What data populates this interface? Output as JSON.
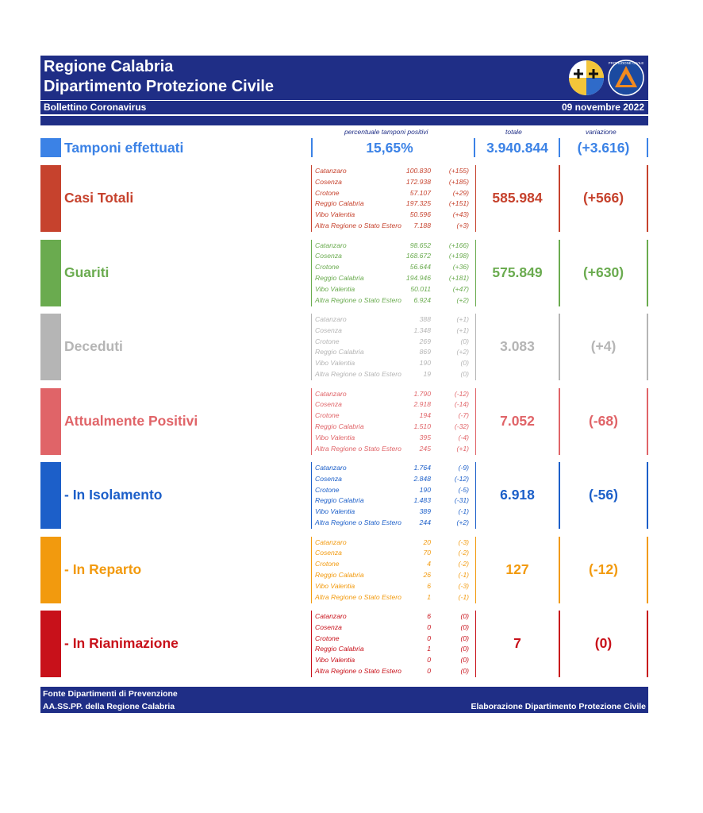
{
  "header": {
    "title_line1": "Regione Calabria",
    "title_line2": "Dipartimento Protezione Civile",
    "bulletin": "Bollettino Coronavirus",
    "date": "09 novembre 2022",
    "logo_text": "PROTEZIONE CIVILE"
  },
  "captions": {
    "positive_pct": "percentuale tamponi positivi",
    "total": "totale",
    "variation": "variazione"
  },
  "tamponi": {
    "label": "Tamponi effettuati",
    "pct": "15,65%",
    "total": "3.940.844",
    "variation": "(+3.616)",
    "color": "#3b82e6"
  },
  "provinces": [
    "Catanzaro",
    "Cosenza",
    "Crotone",
    "Reggio Calabria",
    "Vibo Valentia",
    "Altra Regione o Stato Estero"
  ],
  "rows": [
    {
      "label": "Casi Totali",
      "color": "#c6422d",
      "total": "585.984",
      "variation": "(+566)",
      "values": [
        "100.830",
        "172.938",
        "57.107",
        "197.325",
        "50.596",
        "7.188"
      ],
      "deltas": [
        "(+155)",
        "(+185)",
        "(+29)",
        "(+151)",
        "(+43)",
        "(+3)"
      ]
    },
    {
      "label": "Guariti",
      "color": "#6aab4f",
      "total": "575.849",
      "variation": "(+630)",
      "values": [
        "98.652",
        "168.672",
        "56.644",
        "194.946",
        "50.011",
        "6.924"
      ],
      "deltas": [
        "(+166)",
        "(+198)",
        "(+36)",
        "(+181)",
        "(+47)",
        "(+2)"
      ]
    },
    {
      "label": "Deceduti",
      "color": "#b5b5b5",
      "total": "3.083",
      "variation": "(+4)",
      "values": [
        "388",
        "1.348",
        "269",
        "869",
        "190",
        "19"
      ],
      "deltas": [
        "(+1)",
        "(+1)",
        "(0)",
        "(+2)",
        "(0)",
        "(0)"
      ]
    },
    {
      "label": "Attualmente Positivi",
      "color": "#e06468",
      "total": "7.052",
      "variation": "(-68)",
      "values": [
        "1.790",
        "2.918",
        "194",
        "1.510",
        "395",
        "245"
      ],
      "deltas": [
        "(-12)",
        "(-14)",
        "(-7)",
        "(-32)",
        "(-4)",
        "(+1)"
      ]
    },
    {
      "label": "- In Isolamento",
      "color": "#1c5fc9",
      "total": "6.918",
      "variation": "(-56)",
      "values": [
        "1.764",
        "2.848",
        "190",
        "1.483",
        "389",
        "244"
      ],
      "deltas": [
        "(-9)",
        "(-12)",
        "(-5)",
        "(-31)",
        "(-1)",
        "(+2)"
      ]
    },
    {
      "label": "- In Reparto",
      "color": "#f29a0e",
      "total": "127",
      "variation": "(-12)",
      "values": [
        "20",
        "70",
        "4",
        "26",
        "6",
        "1"
      ],
      "deltas": [
        "(-3)",
        "(-2)",
        "(-2)",
        "(-1)",
        "(-3)",
        "(-1)"
      ]
    },
    {
      "label": "- In Rianimazione",
      "color": "#c8111a",
      "total": "7",
      "variation": "(0)",
      "values": [
        "6",
        "0",
        "0",
        "1",
        "0",
        "0"
      ],
      "deltas": [
        "(0)",
        "(0)",
        "(0)",
        "(0)",
        "(0)",
        "(0)"
      ]
    }
  ],
  "footer": {
    "source_line1": "Fonte Dipartimenti di Prevenzione",
    "source_line2": "AA.SS.PP.  della Regione Calabria",
    "elaboration": "Elaborazione Dipartimento Protezione Civile"
  }
}
